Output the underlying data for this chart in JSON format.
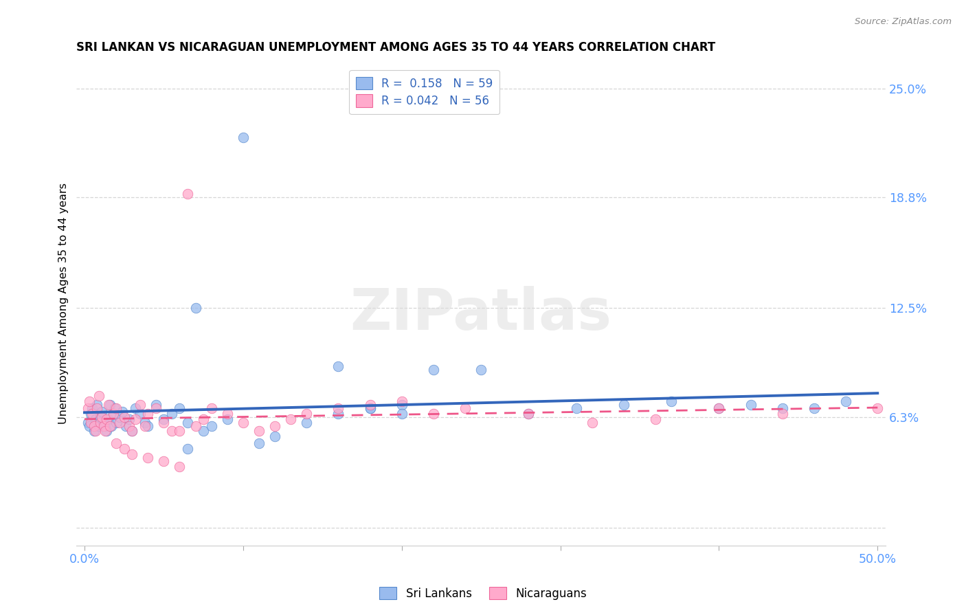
{
  "title": "SRI LANKAN VS NICARAGUAN UNEMPLOYMENT AMONG AGES 35 TO 44 YEARS CORRELATION CHART",
  "source": "Source: ZipAtlas.com",
  "ylabel": "Unemployment Among Ages 35 to 44 years",
  "xtick_labels": [
    "0.0%",
    "",
    "",
    "",
    "",
    "50.0%"
  ],
  "xtick_vals": [
    0.0,
    0.1,
    0.2,
    0.3,
    0.4,
    0.5
  ],
  "ytick_labels": [
    "25.0%",
    "18.8%",
    "12.5%",
    "6.3%",
    ""
  ],
  "ytick_vals": [
    0.25,
    0.188,
    0.125,
    0.063,
    0.0
  ],
  "xlim": [
    -0.005,
    0.505
  ],
  "ylim": [
    -0.01,
    0.265
  ],
  "blue_scatter_color": "#99BBEE",
  "blue_edge_color": "#5588CC",
  "pink_scatter_color": "#FFAACC",
  "pink_edge_color": "#EE6699",
  "trendline_blue_color": "#3366BB",
  "trendline_pink_color": "#EE5588",
  "legend_R_blue": "0.158",
  "legend_N_blue": "59",
  "legend_R_pink": "0.042",
  "legend_N_pink": "56",
  "watermark_text": "ZIPatlas",
  "tick_label_color": "#5599FF",
  "sri_lankans_x": [
    0.002,
    0.003,
    0.004,
    0.005,
    0.006,
    0.007,
    0.008,
    0.009,
    0.01,
    0.011,
    0.012,
    0.013,
    0.014,
    0.015,
    0.016,
    0.017,
    0.018,
    0.019,
    0.02,
    0.022,
    0.024,
    0.026,
    0.028,
    0.03,
    0.032,
    0.035,
    0.038,
    0.04,
    0.045,
    0.05,
    0.055,
    0.06,
    0.065,
    0.07,
    0.075,
    0.08,
    0.09,
    0.1,
    0.11,
    0.12,
    0.14,
    0.16,
    0.18,
    0.2,
    0.22,
    0.25,
    0.28,
    0.31,
    0.34,
    0.37,
    0.4,
    0.42,
    0.44,
    0.46,
    0.48,
    0.16,
    0.18,
    0.2,
    0.065
  ],
  "sri_lankans_y": [
    0.06,
    0.058,
    0.065,
    0.068,
    0.055,
    0.062,
    0.07,
    0.058,
    0.063,
    0.066,
    0.06,
    0.058,
    0.055,
    0.062,
    0.07,
    0.058,
    0.065,
    0.068,
    0.06,
    0.063,
    0.066,
    0.058,
    0.062,
    0.055,
    0.068,
    0.065,
    0.06,
    0.058,
    0.07,
    0.062,
    0.065,
    0.068,
    0.06,
    0.125,
    0.055,
    0.058,
    0.062,
    0.222,
    0.048,
    0.052,
    0.06,
    0.065,
    0.068,
    0.07,
    0.09,
    0.09,
    0.065,
    0.068,
    0.07,
    0.072,
    0.068,
    0.07,
    0.068,
    0.068,
    0.072,
    0.092,
    0.068,
    0.065,
    0.045
  ],
  "nicaraguans_x": [
    0.002,
    0.003,
    0.004,
    0.005,
    0.006,
    0.007,
    0.008,
    0.009,
    0.01,
    0.011,
    0.012,
    0.013,
    0.014,
    0.015,
    0.016,
    0.018,
    0.02,
    0.022,
    0.025,
    0.028,
    0.03,
    0.032,
    0.035,
    0.038,
    0.04,
    0.045,
    0.05,
    0.055,
    0.06,
    0.065,
    0.07,
    0.075,
    0.08,
    0.09,
    0.1,
    0.11,
    0.12,
    0.13,
    0.14,
    0.16,
    0.18,
    0.2,
    0.22,
    0.24,
    0.28,
    0.32,
    0.36,
    0.4,
    0.44,
    0.5,
    0.02,
    0.025,
    0.03,
    0.04,
    0.05,
    0.06
  ],
  "nicaraguans_y": [
    0.068,
    0.072,
    0.06,
    0.065,
    0.058,
    0.055,
    0.068,
    0.075,
    0.06,
    0.063,
    0.058,
    0.055,
    0.062,
    0.07,
    0.058,
    0.065,
    0.068,
    0.06,
    0.063,
    0.058,
    0.055,
    0.062,
    0.07,
    0.058,
    0.065,
    0.068,
    0.06,
    0.055,
    0.055,
    0.19,
    0.058,
    0.062,
    0.068,
    0.065,
    0.06,
    0.055,
    0.058,
    0.062,
    0.065,
    0.068,
    0.07,
    0.072,
    0.065,
    0.068,
    0.065,
    0.06,
    0.062,
    0.068,
    0.065,
    0.068,
    0.048,
    0.045,
    0.042,
    0.04,
    0.038,
    0.035
  ]
}
